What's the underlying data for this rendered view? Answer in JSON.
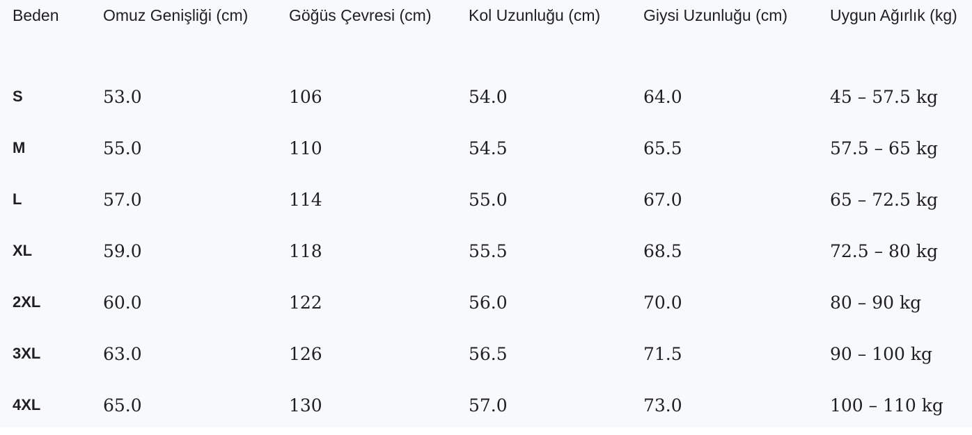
{
  "table": {
    "headers": [
      "Beden",
      "Omuz Genişliği (cm)",
      "Göğüs Çevresi (cm)",
      "Kol Uzunluğu (cm)",
      "Giysi Uzunluğu (cm)",
      "Uygun Ağırlık (kg)"
    ],
    "rows": [
      [
        "S",
        "53.0",
        "106",
        "54.0",
        "64.0",
        "45 – 57.5 kg"
      ],
      [
        "M",
        "55.0",
        "110",
        "54.5",
        "65.5",
        "57.5 – 65 kg"
      ],
      [
        "L",
        "57.0",
        "114",
        "55.0",
        "67.0",
        "65 – 72.5 kg"
      ],
      [
        "XL",
        "59.0",
        "118",
        "55.5",
        "68.5",
        "72.5 – 80 kg"
      ],
      [
        "2XL",
        "60.0",
        "122",
        "56.0",
        "70.0",
        "80 – 90 kg"
      ],
      [
        "3XL",
        "63.0",
        "126",
        "56.5",
        "71.5",
        "90 – 100 kg"
      ],
      [
        "4XL",
        "65.0",
        "130",
        "57.0",
        "73.0",
        "100 – 110 kg"
      ]
    ]
  }
}
